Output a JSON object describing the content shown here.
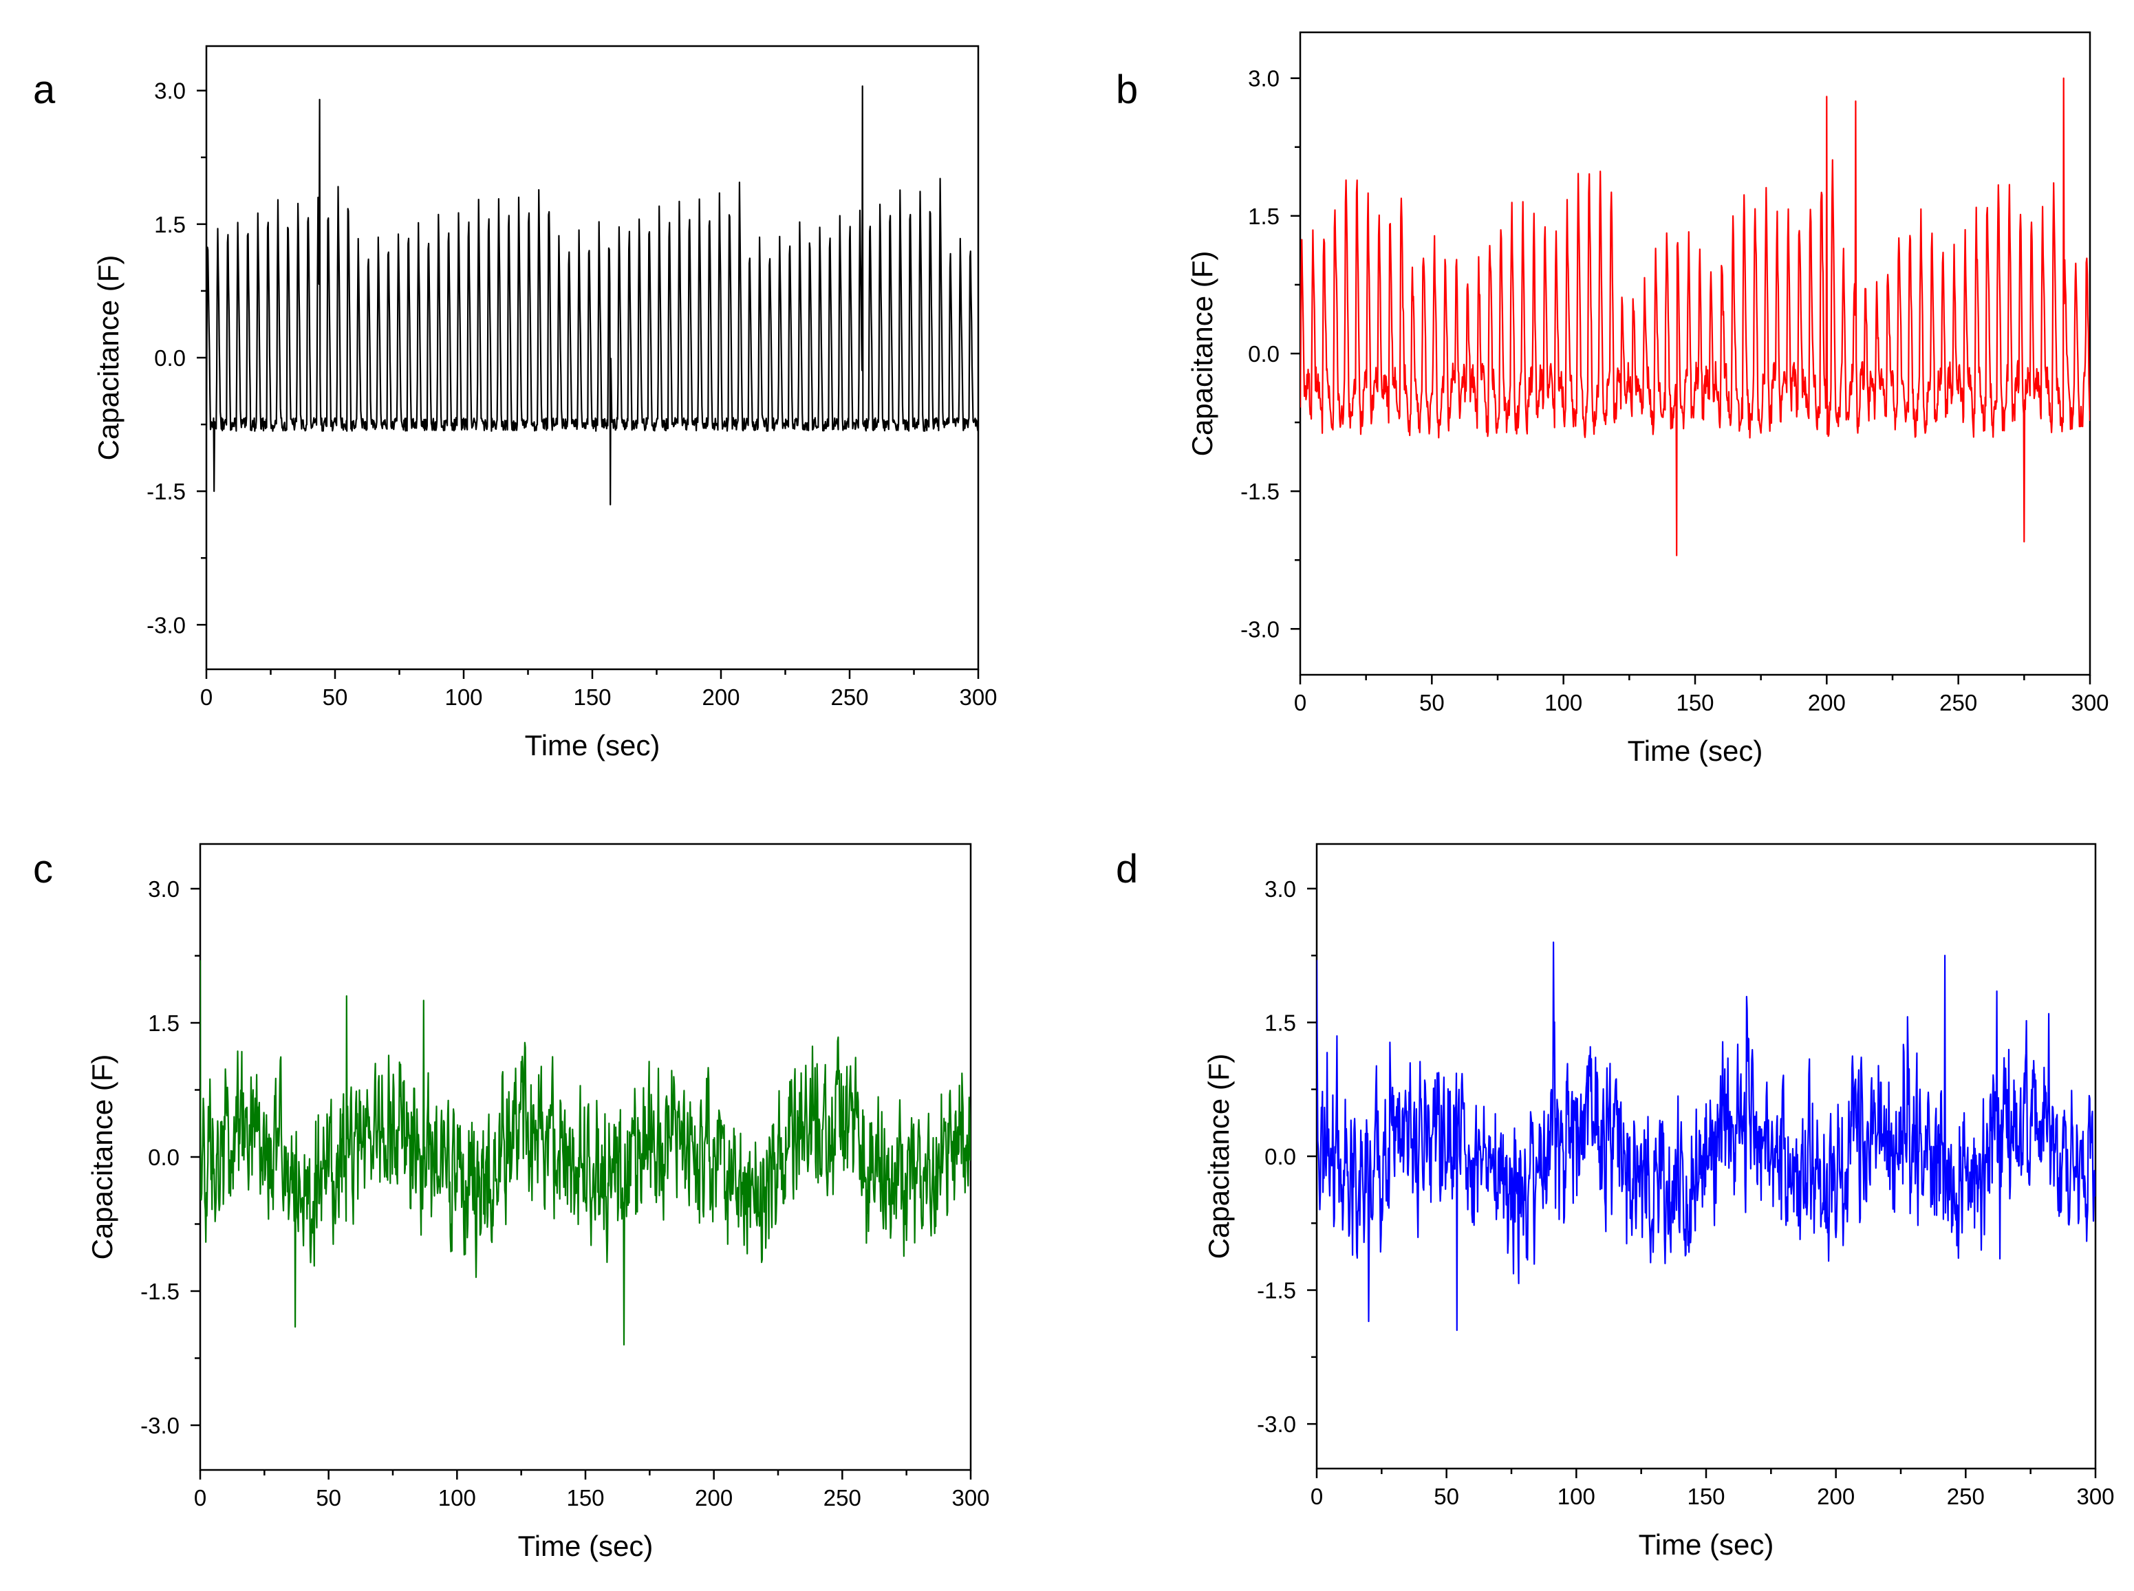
{
  "figure": {
    "panel_letters": [
      "a",
      "b",
      "c",
      "d"
    ]
  },
  "colors": {
    "a": "#000000",
    "b": "#ff0000",
    "c": "#007a00",
    "d": "#0000ff"
  },
  "chart_data": [
    {
      "panel": "a",
      "type": "line",
      "color": "#000000",
      "xlabel": "Time (sec)",
      "ylabel": "Capacitance (F)",
      "xlim": [
        0,
        300
      ],
      "ylim": [
        -3.5,
        3.5
      ],
      "xticks": [
        0,
        50,
        100,
        150,
        200,
        250,
        300
      ],
      "xtick_labels": [
        "0",
        "50",
        "100",
        "150",
        "200",
        "250",
        "300"
      ],
      "yticks": [
        3.0,
        1.5,
        0.0,
        -1.5,
        -3.0
      ],
      "ytick_labels": [
        "3.0",
        "1.5",
        "0.0",
        "-1.5",
        "-3.0"
      ],
      "series": [
        {
          "name": "a",
          "style": "periodic",
          "period_sec": 3.9,
          "base": -0.75,
          "peak_mean": 1.7,
          "peak_spread": 0.35,
          "noise": 0.15,
          "max_points": [
            [
              44,
              2.9
            ],
            [
              255,
              3.05
            ]
          ],
          "min_points": [
            [
              157,
              -1.65
            ],
            [
              3,
              -1.5
            ]
          ]
        }
      ]
    },
    {
      "panel": "b",
      "type": "line",
      "color": "#ff0000",
      "xlabel": "Time (sec)",
      "ylabel": "Capacitance (F)",
      "xlim": [
        0,
        300
      ],
      "ylim": [
        -3.5,
        3.5
      ],
      "xticks": [
        0,
        50,
        100,
        150,
        200,
        250,
        300
      ],
      "xtick_labels": [
        "0",
        "50",
        "100",
        "150",
        "200",
        "250",
        "300"
      ],
      "yticks": [
        3.0,
        1.5,
        0.0,
        -1.5,
        -3.0
      ],
      "ytick_labels": [
        "3.0",
        "1.5",
        "0.0",
        "-1.5",
        "-3.0"
      ],
      "series": [
        {
          "name": "b",
          "style": "periodic-noisy",
          "period_sec": 4.2,
          "base": -0.5,
          "peak_mean": 1.5,
          "peak_spread": 0.6,
          "noise": 0.35,
          "max_points": [
            [
              290,
              3.0
            ],
            [
              200,
              2.8
            ],
            [
              211,
              2.75
            ]
          ],
          "min_points": [
            [
              143,
              -2.2
            ],
            [
              275,
              -2.05
            ]
          ]
        }
      ]
    },
    {
      "panel": "c",
      "type": "line",
      "color": "#007a00",
      "xlabel": "Time (sec)",
      "ylabel": "Capacitance (F)",
      "xlim": [
        0,
        300
      ],
      "ylim": [
        -3.5,
        3.5
      ],
      "xticks": [
        0,
        50,
        100,
        150,
        200,
        250,
        300
      ],
      "xtick_labels": [
        "0",
        "50",
        "100",
        "150",
        "200",
        "250",
        "300"
      ],
      "yticks": [
        3.0,
        1.5,
        0.0,
        -1.5,
        -3.0
      ],
      "ytick_labels": [
        "3.0",
        "1.5",
        "0.0",
        "-1.5",
        "-3.0"
      ],
      "series": [
        {
          "name": "c",
          "style": "random",
          "amplitude": 0.75,
          "noise": 0.45,
          "max_points": [
            [
              0,
              2.2
            ],
            [
              57,
              1.8
            ],
            [
              87,
              1.75
            ]
          ],
          "min_points": [
            [
              165,
              -2.1
            ],
            [
              37,
              -1.9
            ]
          ]
        }
      ]
    },
    {
      "panel": "d",
      "type": "line",
      "color": "#0000ff",
      "xlabel": "Time (sec)",
      "ylabel": "Capacitance (F)",
      "xlim": [
        0,
        300
      ],
      "ylim": [
        -3.5,
        3.5
      ],
      "xticks": [
        0,
        50,
        100,
        150,
        200,
        250,
        300
      ],
      "xtick_labels": [
        "0",
        "50",
        "100",
        "150",
        "200",
        "250",
        "300"
      ],
      "yticks": [
        3.0,
        1.5,
        0.0,
        -1.5,
        -3.0
      ],
      "ytick_labels": [
        "3.0",
        "1.5",
        "0.0",
        "-1.5",
        "-3.0"
      ],
      "series": [
        {
          "name": "d",
          "style": "random-spiky",
          "amplitude": 0.7,
          "noise": 0.5,
          "max_points": [
            [
              0,
              2.2
            ],
            [
              242,
              2.25
            ],
            [
              262,
              1.85
            ]
          ],
          "min_points": [
            [
              54,
              -1.95
            ],
            [
              20,
              -1.85
            ]
          ]
        }
      ]
    }
  ]
}
